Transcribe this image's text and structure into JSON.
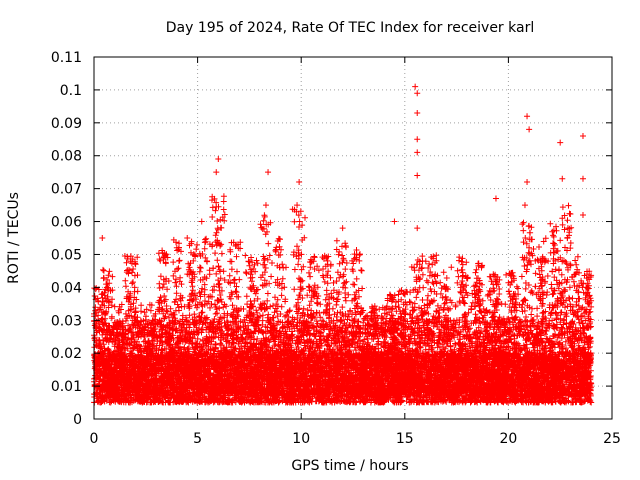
{
  "chart_data": {
    "type": "scatter",
    "title": "Day 195 of 2024, Rate Of TEC Index for receiver karl",
    "xlabel": "GPS time / hours",
    "ylabel": "ROTI / TECUs",
    "xlim": [
      0,
      25
    ],
    "ylim": [
      0,
      0.11
    ],
    "x_ticks": [
      "0",
      "5",
      "10",
      "15",
      "20",
      "25"
    ],
    "x_tick_values": [
      0,
      5,
      10,
      15,
      20,
      25
    ],
    "y_ticks": [
      "0",
      "0.01",
      "0.02",
      "0.03",
      "0.04",
      "0.05",
      "0.06",
      "0.07",
      "0.08",
      "0.09",
      "0.1",
      "0.11"
    ],
    "y_tick_values": [
      0,
      0.01,
      0.02,
      0.03,
      0.04,
      0.05,
      0.06,
      0.07,
      0.08,
      0.09,
      0.1,
      0.11
    ],
    "grid": true,
    "marker": "+",
    "series_color": "#ff0000",
    "data_range_x": [
      0,
      24
    ],
    "typical_y_range": [
      0.005,
      0.03
    ],
    "highlight_points": [
      {
        "x": 0.4,
        "y": 0.055
      },
      {
        "x": 4.5,
        "y": 0.055
      },
      {
        "x": 5.2,
        "y": 0.06
      },
      {
        "x": 5.9,
        "y": 0.075
      },
      {
        "x": 6.0,
        "y": 0.079
      },
      {
        "x": 8.4,
        "y": 0.075
      },
      {
        "x": 8.3,
        "y": 0.065
      },
      {
        "x": 9.8,
        "y": 0.065
      },
      {
        "x": 9.9,
        "y": 0.072
      },
      {
        "x": 12.0,
        "y": 0.058
      },
      {
        "x": 14.5,
        "y": 0.06
      },
      {
        "x": 15.5,
        "y": 0.101
      },
      {
        "x": 15.6,
        "y": 0.099
      },
      {
        "x": 15.6,
        "y": 0.093
      },
      {
        "x": 15.6,
        "y": 0.085
      },
      {
        "x": 15.6,
        "y": 0.081
      },
      {
        "x": 15.6,
        "y": 0.074
      },
      {
        "x": 15.6,
        "y": 0.058
      },
      {
        "x": 19.4,
        "y": 0.067
      },
      {
        "x": 20.9,
        "y": 0.092
      },
      {
        "x": 21.0,
        "y": 0.088
      },
      {
        "x": 20.9,
        "y": 0.072
      },
      {
        "x": 20.8,
        "y": 0.065
      },
      {
        "x": 22.5,
        "y": 0.084
      },
      {
        "x": 22.6,
        "y": 0.073
      },
      {
        "x": 22.6,
        "y": 0.061
      },
      {
        "x": 23.6,
        "y": 0.086
      },
      {
        "x": 23.6,
        "y": 0.073
      },
      {
        "x": 23.6,
        "y": 0.062
      }
    ],
    "peak_clusters": [
      {
        "x": 0.2,
        "peak": 0.04
      },
      {
        "x": 0.6,
        "peak": 0.046
      },
      {
        "x": 1.8,
        "peak": 0.05
      },
      {
        "x": 3.3,
        "peak": 0.052
      },
      {
        "x": 4.0,
        "peak": 0.055
      },
      {
        "x": 4.8,
        "peak": 0.054
      },
      {
        "x": 5.3,
        "peak": 0.058
      },
      {
        "x": 6.0,
        "peak": 0.068
      },
      {
        "x": 6.8,
        "peak": 0.054
      },
      {
        "x": 7.6,
        "peak": 0.05
      },
      {
        "x": 8.3,
        "peak": 0.062
      },
      {
        "x": 9.0,
        "peak": 0.055
      },
      {
        "x": 9.9,
        "peak": 0.064
      },
      {
        "x": 10.6,
        "peak": 0.05
      },
      {
        "x": 11.3,
        "peak": 0.05
      },
      {
        "x": 12.0,
        "peak": 0.055
      },
      {
        "x": 12.7,
        "peak": 0.052
      },
      {
        "x": 13.4,
        "peak": 0.035
      },
      {
        "x": 14.3,
        "peak": 0.038
      },
      {
        "x": 15.0,
        "peak": 0.04
      },
      {
        "x": 15.6,
        "peak": 0.05
      },
      {
        "x": 16.3,
        "peak": 0.05
      },
      {
        "x": 17.0,
        "peak": 0.048
      },
      {
        "x": 17.8,
        "peak": 0.05
      },
      {
        "x": 18.5,
        "peak": 0.048
      },
      {
        "x": 19.3,
        "peak": 0.045
      },
      {
        "x": 20.2,
        "peak": 0.045
      },
      {
        "x": 20.9,
        "peak": 0.06
      },
      {
        "x": 21.6,
        "peak": 0.055
      },
      {
        "x": 22.3,
        "peak": 0.06
      },
      {
        "x": 22.8,
        "peak": 0.065
      },
      {
        "x": 23.3,
        "peak": 0.05
      },
      {
        "x": 23.8,
        "peak": 0.045
      }
    ]
  }
}
